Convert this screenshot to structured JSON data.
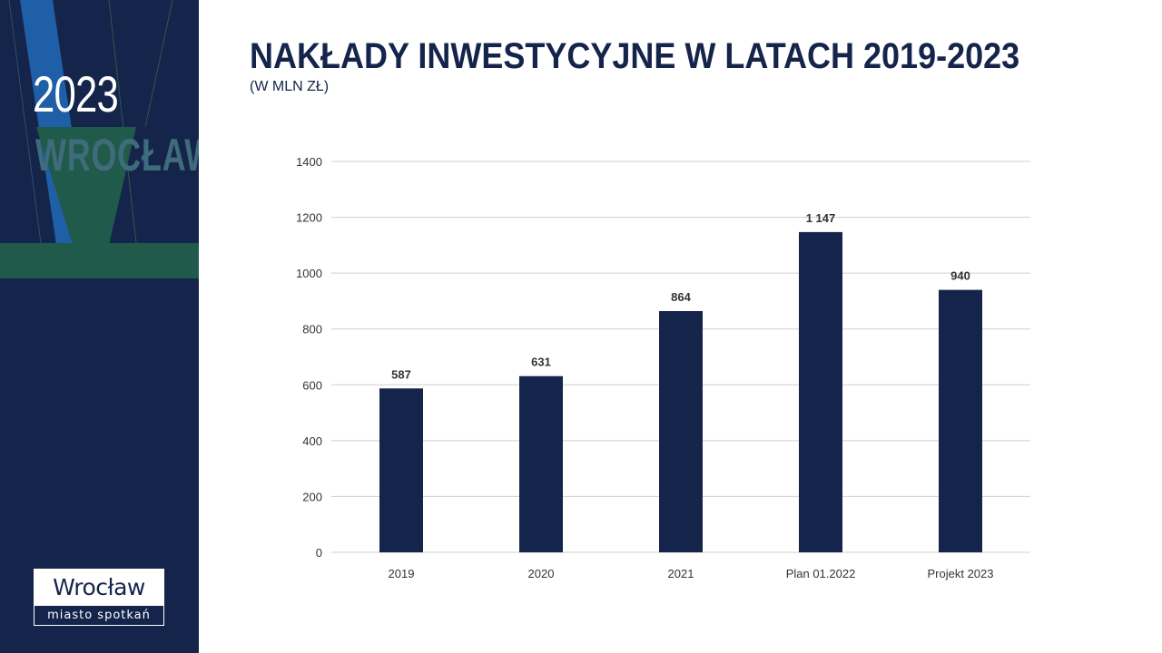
{
  "sidebar": {
    "year": "2023",
    "city": "WROCŁAW",
    "logo": {
      "name": "Wrocław",
      "tagline": "miasto spotkań"
    },
    "colors": {
      "background": "#15244a",
      "accent_blue": "#1f5fa8",
      "accent_green": "#1f5a4a"
    }
  },
  "slide": {
    "title": "NAKŁADY INWESTYCYJNE W LATACH 2019-2023",
    "subtitle": "(W MLN ZŁ)"
  },
  "chart_data": {
    "type": "bar",
    "categories": [
      "2019",
      "2020",
      "2021",
      "Plan 01.2022",
      "Projekt 2023"
    ],
    "values": [
      587,
      631,
      864,
      1147,
      940
    ],
    "data_labels": [
      "587",
      "631",
      "864",
      "1 147",
      "940"
    ],
    "title": "",
    "xlabel": "",
    "ylabel": "",
    "ylim": [
      0,
      1400
    ],
    "yticks": [
      0,
      200,
      400,
      600,
      800,
      1000,
      1200,
      1400
    ],
    "grid": true,
    "legend": "none",
    "bar_color": "#15244a"
  }
}
